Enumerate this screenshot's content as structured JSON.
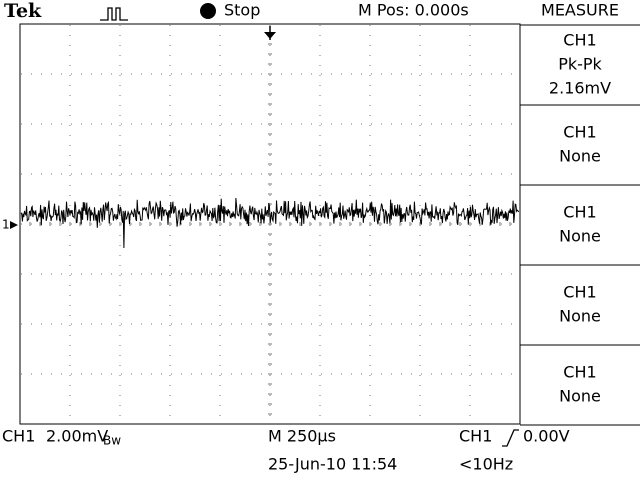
{
  "header": {
    "brand": "Tek",
    "run_state": "Stop",
    "position": "M Pos: 0.000s",
    "menu_title": "MEASURE"
  },
  "measurements": [
    {
      "lines": [
        "CH1",
        "Pk-Pk",
        "2.16mV"
      ]
    },
    {
      "lines": [
        "CH1",
        "None"
      ]
    },
    {
      "lines": [
        "CH1",
        "None"
      ]
    },
    {
      "lines": [
        "CH1",
        "None"
      ]
    },
    {
      "lines": [
        "CH1",
        "None"
      ]
    }
  ],
  "channel_marker": "1",
  "footer": {
    "channel": "CH1",
    "scale": "2.00mV",
    "bandwidth": "Bw",
    "timebase": "M 250µs",
    "timestamp": "25-Jun-10 11:54",
    "trigger_source": "CH1",
    "trigger_level": "0.00V",
    "trigger_freq": "<10Hz"
  }
}
